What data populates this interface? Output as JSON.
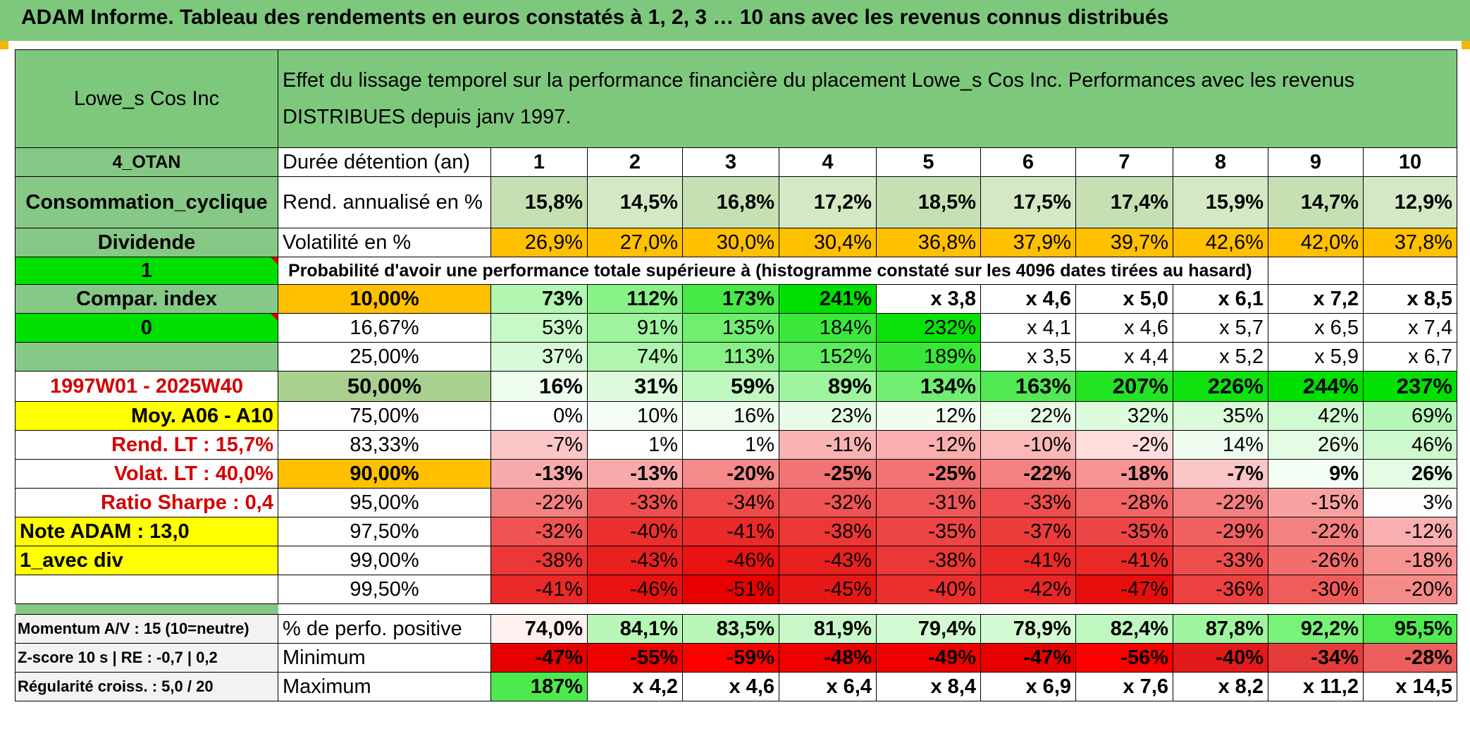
{
  "banner": {
    "title": "ADAM Informe. Tableau des rendements en euros constatés à 1, 2, 3 … 10 ans avec les revenus connus distribués"
  },
  "header": {
    "company": "Lowe_s Cos Inc",
    "description": "Effet du lissage temporel sur la performance financière du placement Lowe_s Cos Inc. Performances avec les revenus DISTRIBUES depuis janv 1997."
  },
  "side": {
    "region": "4_OTAN",
    "sector": "Consommation_cyclique",
    "income": "Dividende",
    "flag1": "1",
    "compar": "Compar. index",
    "flag0": "0",
    "period": "1997W01 - 2025W40",
    "moy": "Moy. A06 - A10",
    "rend": "Rend. LT :   15,7%",
    "volat": "Volat. LT :   40,0%",
    "sharpe": "Ratio Sharpe :   0,4",
    "note": "Note ADAM : 13,0",
    "mode": "1_avec div",
    "momentum": "Momentum A/V : 15 (10=neutre)",
    "zscore": "Z-score 10 s | RE : -0,7 | 0,2",
    "regul": "Régularité croiss. : 5,0 / 20"
  },
  "labels": {
    "duration": "Durée détention (an)",
    "rend": "Rend. annualisé en %",
    "vol": "Volatilité en %",
    "prob": "Probabilité d'avoir une performance totale supérieure à (histogramme constaté sur les 4096 dates tirées au hasard)",
    "pos": "% de perfo. positive",
    "min": "Minimum",
    "max": "Maximum"
  },
  "years": [
    "1",
    "2",
    "3",
    "4",
    "5",
    "6",
    "7",
    "8",
    "9",
    "10"
  ],
  "rend_values": [
    "15,8%",
    "14,5%",
    "16,8%",
    "17,2%",
    "18,5%",
    "17,5%",
    "17,4%",
    "15,9%",
    "14,7%",
    "12,9%"
  ],
  "vol_values": [
    "26,9%",
    "27,0%",
    "30,0%",
    "30,4%",
    "36,8%",
    "37,9%",
    "39,7%",
    "42,6%",
    "42,0%",
    "37,8%"
  ],
  "quantiles": [
    {
      "label": "10,00%",
      "values": [
        "73%",
        "112%",
        "173%",
        "241%",
        "x 3,8",
        "x 4,6",
        "x 5,0",
        "x 6,1",
        "x 7,2",
        "x 8,5"
      ]
    },
    {
      "label": "16,67%",
      "values": [
        "53%",
        "91%",
        "135%",
        "184%",
        "232%",
        "x 4,1",
        "x 4,6",
        "x 5,7",
        "x 6,5",
        "x 7,4"
      ]
    },
    {
      "label": "25,00%",
      "values": [
        "37%",
        "74%",
        "113%",
        "152%",
        "189%",
        "x 3,5",
        "x 4,4",
        "x 5,2",
        "x 5,9",
        "x 6,7"
      ]
    },
    {
      "label": "50,00%",
      "values": [
        "16%",
        "31%",
        "59%",
        "89%",
        "134%",
        "163%",
        "207%",
        "226%",
        "244%",
        "237%"
      ]
    },
    {
      "label": "75,00%",
      "values": [
        "0%",
        "10%",
        "16%",
        "23%",
        "12%",
        "22%",
        "32%",
        "35%",
        "42%",
        "69%"
      ]
    },
    {
      "label": "83,33%",
      "values": [
        "-7%",
        "1%",
        "1%",
        "-11%",
        "-12%",
        "-10%",
        "-2%",
        "14%",
        "26%",
        "46%"
      ]
    },
    {
      "label": "90,00%",
      "values": [
        "-13%",
        "-13%",
        "-20%",
        "-25%",
        "-25%",
        "-22%",
        "-18%",
        "-7%",
        "9%",
        "26%"
      ]
    },
    {
      "label": "95,00%",
      "values": [
        "-22%",
        "-33%",
        "-34%",
        "-32%",
        "-31%",
        "-33%",
        "-28%",
        "-22%",
        "-15%",
        "3%"
      ]
    },
    {
      "label": "97,50%",
      "values": [
        "-32%",
        "-40%",
        "-41%",
        "-38%",
        "-35%",
        "-37%",
        "-35%",
        "-29%",
        "-22%",
        "-12%"
      ]
    },
    {
      "label": "99,00%",
      "values": [
        "-38%",
        "-43%",
        "-46%",
        "-43%",
        "-38%",
        "-41%",
        "-41%",
        "-33%",
        "-26%",
        "-18%"
      ]
    },
    {
      "label": "99,50%",
      "values": [
        "-41%",
        "-46%",
        "-51%",
        "-45%",
        "-40%",
        "-42%",
        "-47%",
        "-36%",
        "-30%",
        "-20%"
      ]
    }
  ],
  "pos_values": [
    "74,0%",
    "84,1%",
    "83,5%",
    "81,9%",
    "79,4%",
    "78,9%",
    "82,4%",
    "87,8%",
    "92,2%",
    "95,5%"
  ],
  "min_values": [
    "-47%",
    "-55%",
    "-59%",
    "-48%",
    "-49%",
    "-47%",
    "-56%",
    "-40%",
    "-34%",
    "-28%"
  ],
  "max_values": [
    "187%",
    "x 4,2",
    "x 4,6",
    "x 6,4",
    "x 8,4",
    "x 6,9",
    "x 7,6",
    "x 8,2",
    "x 11,2",
    "x 14,5"
  ],
  "colors": {
    "banner": "#7ec87e",
    "header_green": "#7ec87e",
    "side_green": "#86c886",
    "bright_green": "#00e000",
    "yellow": "#ffff00",
    "orange": "#ffc000",
    "rend_fill": "#c6e0b4",
    "median_fill": "#a9d08e",
    "period_red": "#d40000"
  }
}
